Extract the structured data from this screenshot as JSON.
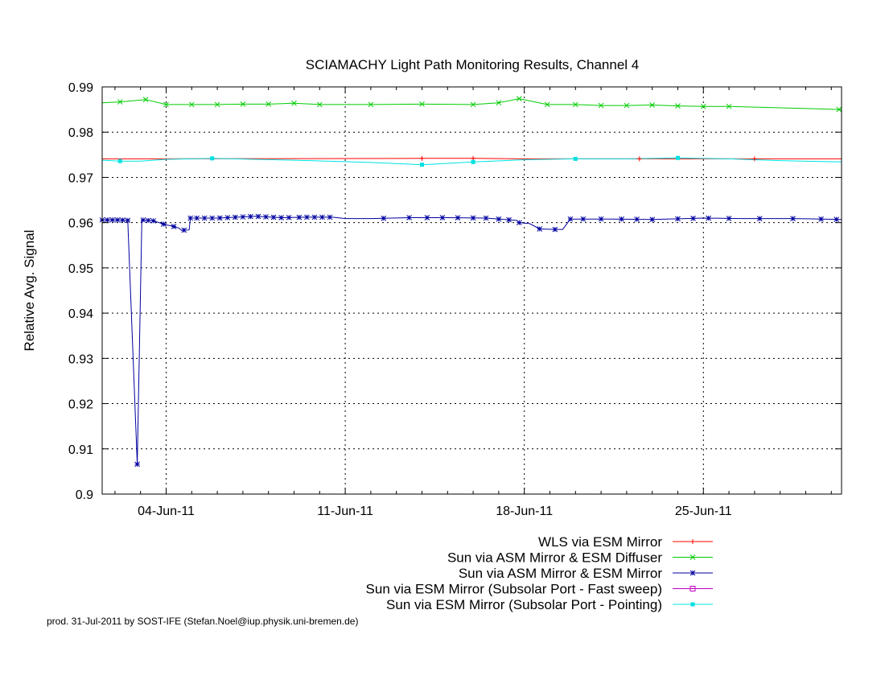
{
  "chart_data": {
    "type": "line",
    "title": "SCIAMACHY Light Path Monitoring Results, Channel 4",
    "xlabel": "",
    "ylabel": "Relative Avg. Signal",
    "x_axis": "date (days of June 2011)",
    "xlim": [
      1.5,
      30.4
    ],
    "ylim": [
      0.9,
      0.99
    ],
    "y_ticks": [
      0.9,
      0.91,
      0.92,
      0.93,
      0.94,
      0.95,
      0.96,
      0.97,
      0.98,
      0.99
    ],
    "y_tick_labels": [
      "0.9",
      "0.91",
      "0.92",
      "0.93",
      "0.94",
      "0.95",
      "0.96",
      "0.97",
      "0.98",
      "0.99"
    ],
    "x_ticks": [
      4,
      11,
      18,
      25
    ],
    "x_tick_labels": [
      "04-Jun-11",
      "11-Jun-11",
      "18-Jun-11",
      "25-Jun-11"
    ],
    "grid": "dotted, at major ticks",
    "legend_position": "below plot, right-aligned",
    "series": [
      {
        "name": "WLS via ESM Mirror",
        "color": "#ff0000",
        "marker": "plus",
        "points": [
          [
            1.5,
            0.9741
          ],
          [
            4.0,
            0.9741
          ],
          [
            14.0,
            0.9742
          ],
          [
            16.0,
            0.9742
          ],
          [
            18.0,
            0.9741
          ],
          [
            22.5,
            0.9741
          ],
          [
            27.0,
            0.9741
          ],
          [
            30.4,
            0.9741
          ]
        ],
        "markers": [
          14.0,
          16.0,
          22.5,
          27.0
        ]
      },
      {
        "name": "Sun via ASM Mirror & ESM Diffuser",
        "color": "#00cc00",
        "marker": "cross",
        "points": [
          [
            1.5,
            0.9865
          ],
          [
            2.2,
            0.9867
          ],
          [
            3.2,
            0.9872
          ],
          [
            4.0,
            0.9861
          ],
          [
            5.0,
            0.9861
          ],
          [
            6.0,
            0.9861
          ],
          [
            7.0,
            0.9862
          ],
          [
            8.0,
            0.9862
          ],
          [
            9.0,
            0.9864
          ],
          [
            10.0,
            0.9861
          ],
          [
            12.0,
            0.9861
          ],
          [
            14.0,
            0.9862
          ],
          [
            16.0,
            0.9861
          ],
          [
            17.0,
            0.9865
          ],
          [
            17.8,
            0.9874
          ],
          [
            18.9,
            0.9861
          ],
          [
            20.0,
            0.9861
          ],
          [
            21.0,
            0.9859
          ],
          [
            22.0,
            0.9859
          ],
          [
            23.0,
            0.986
          ],
          [
            24.0,
            0.9858
          ],
          [
            25.0,
            0.9857
          ],
          [
            26.0,
            0.9857
          ],
          [
            30.4,
            0.985
          ]
        ],
        "markers": [
          2.2,
          3.2,
          4.0,
          5.0,
          6.0,
          7.0,
          8.0,
          9.0,
          10.0,
          12.0,
          14.0,
          16.0,
          17.0,
          17.8,
          18.9,
          20.0,
          21.0,
          22.0,
          23.0,
          24.0,
          25.0,
          26.0,
          30.3
        ]
      },
      {
        "name": "Sun via ASM Mirror & ESM Mirror",
        "color": "#0000a0",
        "marker": "star",
        "points": [
          [
            1.5,
            0.9606
          ],
          [
            2.2,
            0.9606
          ],
          [
            2.5,
            0.9605
          ],
          [
            2.87,
            0.9066
          ],
          [
            3.05,
            0.9606
          ],
          [
            3.5,
            0.9604
          ],
          [
            4.0,
            0.9595
          ],
          [
            4.2,
            0.9593
          ],
          [
            4.5,
            0.9588
          ],
          [
            4.6,
            0.9583
          ],
          [
            4.9,
            0.9584
          ],
          [
            4.95,
            0.961
          ],
          [
            6.0,
            0.961
          ],
          [
            7.5,
            0.9614
          ],
          [
            8.5,
            0.9611
          ],
          [
            9.5,
            0.9612
          ],
          [
            10.5,
            0.9612
          ],
          [
            11.0,
            0.9609
          ],
          [
            12.0,
            0.9609
          ],
          [
            13.5,
            0.9611
          ],
          [
            15.0,
            0.9611
          ],
          [
            16.5,
            0.961
          ],
          [
            17.7,
            0.9605
          ],
          [
            17.8,
            0.96
          ],
          [
            18.2,
            0.9598
          ],
          [
            18.6,
            0.9586
          ],
          [
            19.2,
            0.9585
          ],
          [
            19.5,
            0.9585
          ],
          [
            19.8,
            0.9608
          ],
          [
            21.5,
            0.9608
          ],
          [
            23.0,
            0.9607
          ],
          [
            25.0,
            0.961
          ],
          [
            26.5,
            0.9609
          ],
          [
            28.5,
            0.9609
          ],
          [
            30.4,
            0.9607
          ]
        ],
        "markers": [
          1.5,
          1.7,
          1.9,
          2.1,
          2.3,
          2.5,
          2.87,
          3.1,
          3.3,
          3.5,
          3.9,
          4.3,
          4.7,
          4.95,
          5.2,
          5.5,
          5.8,
          6.1,
          6.4,
          6.7,
          7.0,
          7.3,
          7.6,
          7.9,
          8.2,
          8.5,
          8.8,
          9.2,
          9.5,
          9.8,
          10.1,
          10.4,
          12.5,
          13.5,
          14.2,
          14.8,
          15.4,
          16.0,
          16.5,
          17.0,
          17.4,
          17.8,
          18.6,
          19.2,
          19.8,
          20.3,
          21.0,
          21.8,
          22.4,
          23.0,
          24.0,
          24.6,
          25.2,
          26.0,
          27.2,
          28.5,
          29.6,
          30.2
        ]
      },
      {
        "name": "Sun via ESM Mirror (Subsolar Port - Fast sweep)",
        "color": "#c000c0",
        "marker": "box",
        "points": [],
        "markers": []
      },
      {
        "name": "Sun via ESM Mirror (Subsolar Port - Pointing)",
        "color": "#00e0e0",
        "marker": "filled-box",
        "points": [
          [
            1.5,
            0.9738
          ],
          [
            2.2,
            0.9736
          ],
          [
            3.0,
            0.9736
          ],
          [
            4.0,
            0.974
          ],
          [
            5.8,
            0.9742
          ],
          [
            9.0,
            0.9738
          ],
          [
            12.0,
            0.9733
          ],
          [
            14.0,
            0.9728
          ],
          [
            16.0,
            0.9734
          ],
          [
            18.0,
            0.9739
          ],
          [
            20.0,
            0.9741
          ],
          [
            22.0,
            0.9741
          ],
          [
            24.0,
            0.9743
          ],
          [
            26.0,
            0.9741
          ],
          [
            28.0,
            0.9737
          ],
          [
            30.4,
            0.9734
          ]
        ],
        "markers": [
          2.2,
          5.8,
          14.0,
          16.0,
          20.0,
          24.0
        ]
      }
    ]
  },
  "footer": "prod. 31-Jul-2011 by SOST-IFE (Stefan.Noel@iup.physik.uni-bremen.de)"
}
